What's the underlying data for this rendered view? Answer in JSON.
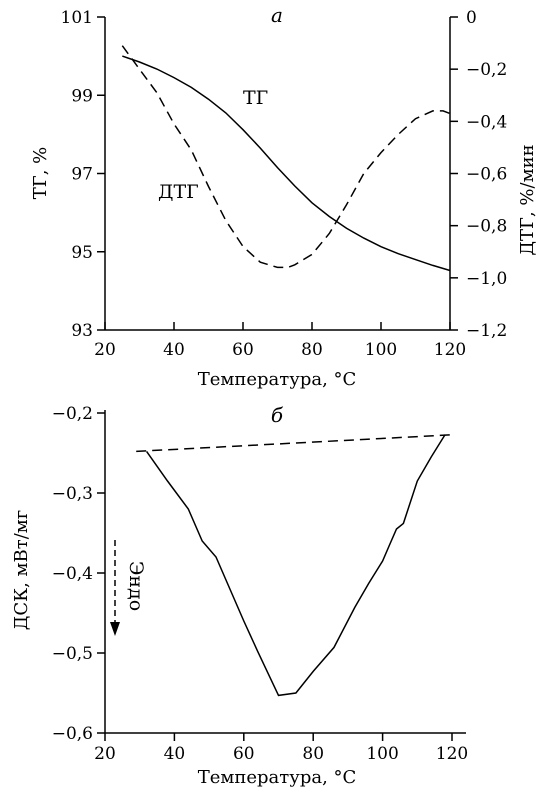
{
  "chart_data": [
    {
      "type": "line",
      "panel_label": "а",
      "xlabel": "Температура, °С",
      "ylabel": "ТГ, %",
      "y2label": "ДТГ, %/мин",
      "xlim": [
        20,
        120
      ],
      "ylim": [
        93,
        101
      ],
      "y2lim": [
        -1.2,
        0
      ],
      "x_ticks": [
        "20",
        "40",
        "60",
        "80",
        "100",
        "120"
      ],
      "y_ticks": [
        "93",
        "95",
        "97",
        "99",
        "101"
      ],
      "y2_ticks": [
        "0",
        "−0,2",
        "−0,4",
        "−0,6",
        "−0,8",
        "−1,0",
        "−1,2"
      ],
      "grid": false,
      "series": [
        {
          "name": "ТГ",
          "axis": "left",
          "style": "solid",
          "x": [
            25,
            30,
            35,
            40,
            45,
            50,
            55,
            60,
            65,
            70,
            75,
            80,
            85,
            90,
            95,
            100,
            105,
            110,
            115,
            120
          ],
          "y": [
            100.0,
            99.85,
            99.67,
            99.45,
            99.2,
            98.9,
            98.55,
            98.12,
            97.65,
            97.15,
            96.68,
            96.25,
            95.9,
            95.6,
            95.35,
            95.13,
            94.95,
            94.8,
            94.65,
            94.52
          ]
        },
        {
          "name": "ДТГ",
          "axis": "right",
          "style": "dashed",
          "x": [
            25,
            30,
            35,
            40,
            45,
            50,
            55,
            60,
            65,
            70,
            73,
            75,
            80,
            85,
            90,
            95,
            100,
            105,
            110,
            115,
            118,
            120
          ],
          "y": [
            -0.11,
            -0.2,
            -0.29,
            -0.41,
            -0.51,
            -0.65,
            -0.78,
            -0.88,
            -0.94,
            -0.96,
            -0.96,
            -0.95,
            -0.91,
            -0.83,
            -0.72,
            -0.6,
            -0.52,
            -0.45,
            -0.39,
            -0.36,
            -0.36,
            -0.37
          ]
        }
      ]
    },
    {
      "type": "line",
      "panel_label": "б",
      "xlabel": "Температура, °С",
      "ylabel": "ДСК, мВт/мг",
      "xlim": [
        20,
        120
      ],
      "ylim": [
        -0.6,
        -0.2
      ],
      "x_ticks": [
        "20",
        "40",
        "60",
        "80",
        "100",
        "120"
      ],
      "y_ticks": [
        "−0,2",
        "−0,3",
        "−0,4",
        "−0,5",
        "−0,6"
      ],
      "grid": false,
      "annotation": "Эндо",
      "series": [
        {
          "style": "solid",
          "x": [
            32,
            38,
            44,
            48,
            52,
            56,
            60,
            64,
            70,
            75,
            80,
            86,
            92,
            96,
            100,
            102,
            104,
            106,
            110,
            114,
            118
          ],
          "y": [
            -0.248,
            -0.285,
            -0.32,
            -0.36,
            -0.38,
            -0.42,
            -0.46,
            -0.498,
            -0.553,
            -0.55,
            -0.523,
            -0.493,
            -0.443,
            -0.413,
            -0.385,
            -0.365,
            -0.345,
            -0.338,
            -0.285,
            -0.255,
            -0.227
          ]
        },
        {
          "style": "dashed",
          "x": [
            29,
            121
          ],
          "y": [
            -0.248,
            -0.227
          ]
        }
      ]
    }
  ]
}
